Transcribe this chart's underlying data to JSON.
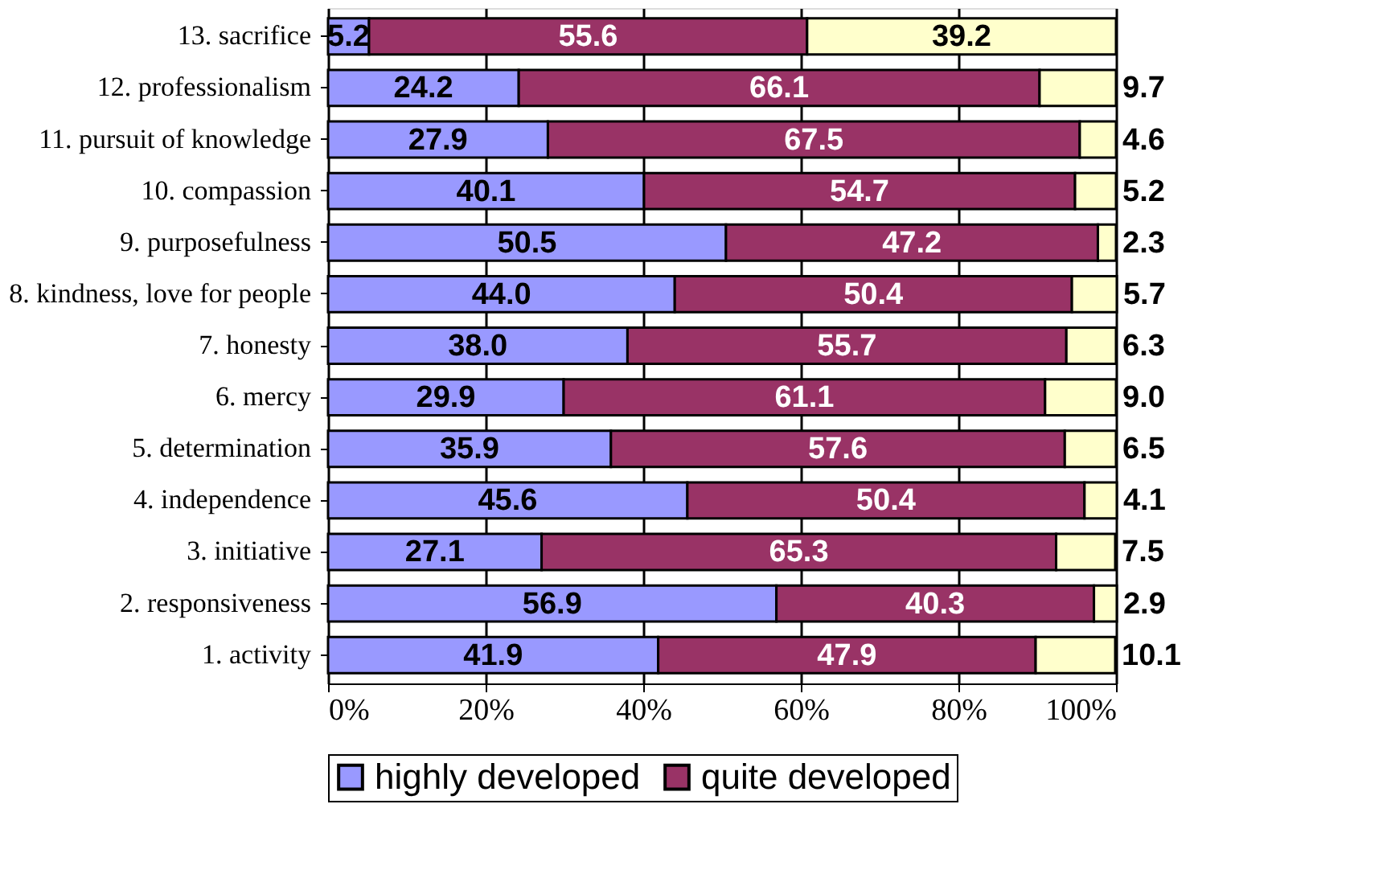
{
  "chart_data": {
    "type": "bar",
    "orientation": "horizontal",
    "stacked": true,
    "categories": [
      "13. sacrifice",
      "12. professionalism",
      "11. pursuit of knowledge",
      "10. compassion",
      "9. purposefulness",
      "8. kindness, love for people",
      "7. honesty",
      "6. mercy",
      "5. determination",
      "4. independence",
      "3. initiative",
      "2. responsiveness",
      "1. activity"
    ],
    "series": [
      {
        "name": "highly developed",
        "color": "#9999ff",
        "values": [
          5.2,
          24.2,
          27.9,
          40.1,
          50.5,
          44.0,
          38.0,
          29.9,
          35.9,
          45.6,
          27.1,
          56.9,
          41.9
        ],
        "value_labels": [
          "5.2",
          "24.2",
          "27.9",
          "40.1",
          "50.5",
          "44.0",
          "38.0",
          "29.9",
          "35.9",
          "45.6",
          "27.1",
          "56.9",
          "41.9"
        ]
      },
      {
        "name": "quite developed",
        "color": "#993366",
        "values": [
          55.6,
          66.1,
          67.5,
          54.7,
          47.2,
          50.4,
          55.7,
          61.1,
          57.6,
          50.4,
          65.3,
          40.3,
          47.9
        ],
        "value_labels": [
          "55.6",
          "66.1",
          "67.5",
          "54.7",
          "47.2",
          "50.4",
          "55.7",
          "61.1",
          "57.6",
          "50.4",
          "65.3",
          "40.3",
          "47.9"
        ]
      },
      {
        "color": "#ffffcc",
        "values": [
          39.2,
          9.7,
          4.6,
          5.2,
          2.3,
          5.7,
          6.3,
          9.0,
          6.5,
          4.1,
          7.5,
          2.9,
          10.1
        ],
        "value_labels": [
          "39.2",
          "9.7",
          "4.6",
          "5.2",
          "2.3",
          "5.7",
          "6.3",
          "9.0",
          "6.5",
          "4.1",
          "7.5",
          "2.9",
          "10.1"
        ]
      }
    ],
    "xlim": [
      0,
      100
    ],
    "xticks": [
      {
        "value": 0,
        "label": "0%"
      },
      {
        "value": 20,
        "label": "20%"
      },
      {
        "value": 40,
        "label": "40%"
      },
      {
        "value": 60,
        "label": "60%"
      },
      {
        "value": 80,
        "label": "80%"
      },
      {
        "value": 100,
        "label": "100%"
      }
    ],
    "grid": "x",
    "legend": "bottom"
  }
}
